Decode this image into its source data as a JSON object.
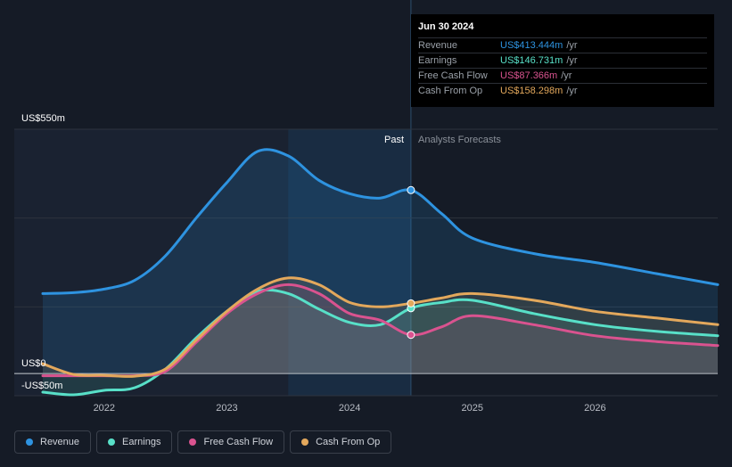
{
  "chart_data": {
    "type": "area",
    "y_axis_labels": {
      "top": "US$550m",
      "zero": "US$0",
      "bottom": "-US$50m"
    },
    "ylim": [
      -50,
      550
    ],
    "x_ticks": [
      "2022",
      "2023",
      "2024",
      "2025",
      "2026"
    ],
    "x_tick_values": [
      2022,
      2023,
      2024,
      2025,
      2026
    ],
    "xlim": [
      2021.5,
      2027.0
    ],
    "divider_x": 2024.5,
    "shade_start_x": 2023.5,
    "past_label": "Past",
    "forecast_label": "Analysts Forecasts",
    "series": [
      {
        "name": "Revenue",
        "color": "#2e93e0",
        "x": [
          2021.5,
          2021.75,
          2022.0,
          2022.25,
          2022.5,
          2022.75,
          2023.0,
          2023.25,
          2023.5,
          2023.75,
          2024.0,
          2024.25,
          2024.5,
          2024.75,
          2025.0,
          2025.5,
          2026.0,
          2026.5,
          2027.0
        ],
        "y": [
          180,
          182,
          190,
          210,
          265,
          350,
          430,
          500,
          490,
          435,
          405,
          395,
          413,
          360,
          305,
          270,
          250,
          225,
          200
        ]
      },
      {
        "name": "Earnings",
        "color": "#58e0c8",
        "x": [
          2021.5,
          2021.75,
          2022.0,
          2022.25,
          2022.5,
          2022.75,
          2023.0,
          2023.25,
          2023.5,
          2023.75,
          2024.0,
          2024.25,
          2024.5,
          2024.75,
          2025.0,
          2025.5,
          2026.0,
          2026.5,
          2027.0
        ],
        "y": [
          -42,
          -48,
          -38,
          -32,
          10,
          80,
          140,
          185,
          180,
          145,
          115,
          110,
          147,
          160,
          165,
          135,
          110,
          95,
          85
        ]
      },
      {
        "name": "Free Cash Flow",
        "color": "#d9538f",
        "x": [
          2021.5,
          2021.75,
          2022.0,
          2022.25,
          2022.5,
          2022.75,
          2023.0,
          2023.25,
          2023.5,
          2023.75,
          2024.0,
          2024.25,
          2024.5,
          2024.75,
          2025.0,
          2025.5,
          2026.0,
          2026.5,
          2027.0
        ],
        "y": [
          -5,
          -5,
          -5,
          -5,
          5,
          70,
          135,
          180,
          200,
          180,
          135,
          120,
          87,
          105,
          130,
          110,
          85,
          72,
          63
        ]
      },
      {
        "name": "Cash From Op",
        "color": "#e3a85c",
        "x": [
          2021.5,
          2021.75,
          2022.0,
          2022.25,
          2022.5,
          2022.75,
          2023.0,
          2023.25,
          2023.5,
          2023.75,
          2024.0,
          2024.25,
          2024.5,
          2024.75,
          2025.0,
          2025.5,
          2026.0,
          2026.5,
          2027.0
        ],
        "y": [
          22,
          -2,
          -4,
          -6,
          10,
          75,
          140,
          190,
          215,
          200,
          160,
          150,
          158,
          170,
          180,
          165,
          140,
          125,
          110
        ]
      }
    ],
    "markers": [
      {
        "series": "Revenue",
        "x": 2024.5,
        "y": 413
      },
      {
        "series": "Earnings",
        "x": 2024.5,
        "y": 147
      },
      {
        "series": "Free Cash Flow",
        "x": 2024.5,
        "y": 87
      },
      {
        "series": "Cash From Op",
        "x": 2024.5,
        "y": 158
      }
    ]
  },
  "tooltip": {
    "date": "Jun 30 2024",
    "rows": [
      {
        "label": "Revenue",
        "value": "US$413.444m",
        "unit": "/yr",
        "color": "#2e93e0"
      },
      {
        "label": "Earnings",
        "value": "US$146.731m",
        "unit": "/yr",
        "color": "#58e0c8"
      },
      {
        "label": "Free Cash Flow",
        "value": "US$87.366m",
        "unit": "/yr",
        "color": "#d9538f"
      },
      {
        "label": "Cash From Op",
        "value": "US$158.298m",
        "unit": "/yr",
        "color": "#e3a85c"
      }
    ]
  },
  "legend": [
    {
      "label": "Revenue",
      "color": "#2e93e0"
    },
    {
      "label": "Earnings",
      "color": "#58e0c8"
    },
    {
      "label": "Free Cash Flow",
      "color": "#d9538f"
    },
    {
      "label": "Cash From Op",
      "color": "#e3a85c"
    }
  ]
}
